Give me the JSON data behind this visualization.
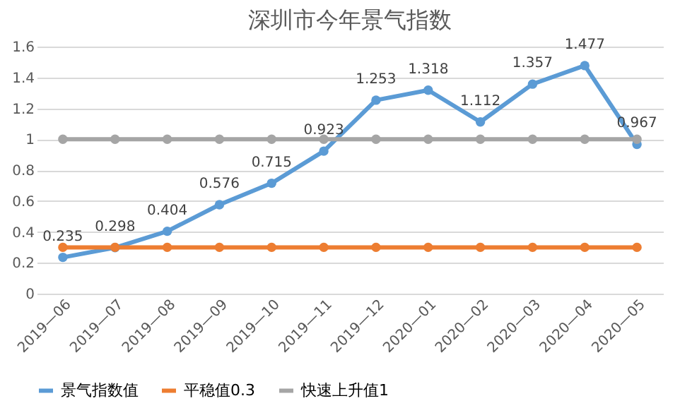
{
  "chart_data": {
    "type": "line",
    "title": "深圳市今年景气指数",
    "categories": [
      "2019—06",
      "2019—07",
      "2019—08",
      "2019—09",
      "2019—10",
      "2019—11",
      "2019—12",
      "2020—01",
      "2020—02",
      "2020—03",
      "2020—04",
      "2020—05"
    ],
    "series": [
      {
        "name": "景气指数值",
        "color": "#5b9bd5",
        "values": [
          0.235,
          0.298,
          0.404,
          0.576,
          0.715,
          0.923,
          1.253,
          1.318,
          1.112,
          1.357,
          1.477,
          0.967
        ],
        "value_labels": [
          "0.235",
          "0.298",
          "0.404",
          "0.576",
          "0.715",
          "0.923",
          "1.253",
          "1.318",
          "1.112",
          "1.357",
          "1.477",
          "0.967"
        ]
      },
      {
        "name": "平稳值0.3",
        "color": "#ed7d31",
        "values": [
          0.3,
          0.3,
          0.3,
          0.3,
          0.3,
          0.3,
          0.3,
          0.3,
          0.3,
          0.3,
          0.3,
          0.3
        ]
      },
      {
        "name": "快速上升值1",
        "color": "#a5a5a5",
        "values": [
          1,
          1,
          1,
          1,
          1,
          1,
          1,
          1,
          1,
          1,
          1,
          1
        ]
      }
    ],
    "ylim": [
      0,
      1.6
    ],
    "yticks": [
      0,
      0.2,
      0.4,
      0.6,
      0.8,
      1,
      1.2,
      1.4,
      1.6
    ],
    "grid": "y",
    "legend": "bottom",
    "marker": "circle",
    "line_style": "solid"
  }
}
